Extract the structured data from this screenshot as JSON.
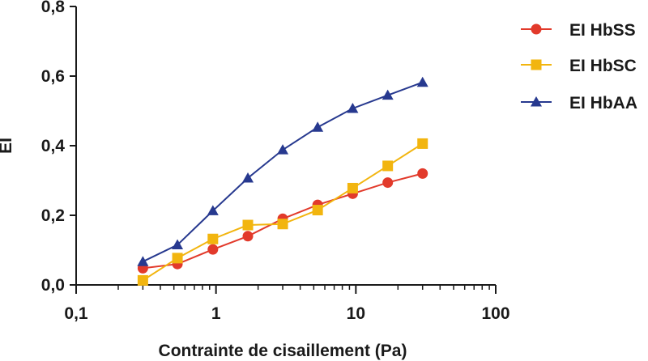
{
  "chart_data": {
    "type": "line",
    "xlabel": "Contrainte de cisaillement (Pa)",
    "ylabel": "EI",
    "x_scale": "log",
    "xlim": [
      0.1,
      100
    ],
    "ylim": [
      0,
      0.8
    ],
    "x_ticks": [
      {
        "value": 0.1,
        "label": "0,1"
      },
      {
        "value": 1,
        "label": "1"
      },
      {
        "value": 10,
        "label": "10"
      },
      {
        "value": 100,
        "label": "100"
      }
    ],
    "y_ticks": [
      {
        "value": 0,
        "label": "0,0"
      },
      {
        "value": 0.2,
        "label": "0,2"
      },
      {
        "value": 0.4,
        "label": "0,4"
      },
      {
        "value": 0.6,
        "label": "0,6"
      },
      {
        "value": 0.8,
        "label": "0,8"
      }
    ],
    "x": [
      0.3,
      0.53,
      0.95,
      1.69,
      3.0,
      5.33,
      9.49,
      16.9,
      30
    ],
    "grid": false,
    "legend_position": "right",
    "series": [
      {
        "name": "EI HbSS",
        "color": "#e23a2b",
        "marker": "circle",
        "values": [
          0.048,
          0.06,
          0.102,
          0.14,
          0.19,
          0.23,
          0.262,
          0.294,
          0.32
        ]
      },
      {
        "name": "EI HbSC",
        "color": "#f2b50f",
        "marker": "square",
        "values": [
          0.013,
          0.077,
          0.132,
          0.172,
          0.175,
          0.215,
          0.278,
          0.342,
          0.406
        ]
      },
      {
        "name": "EI HbAA",
        "color": "#27398f",
        "marker": "triangle",
        "values": [
          0.067,
          0.115,
          0.213,
          0.307,
          0.388,
          0.453,
          0.507,
          0.545,
          0.582
        ]
      }
    ]
  }
}
